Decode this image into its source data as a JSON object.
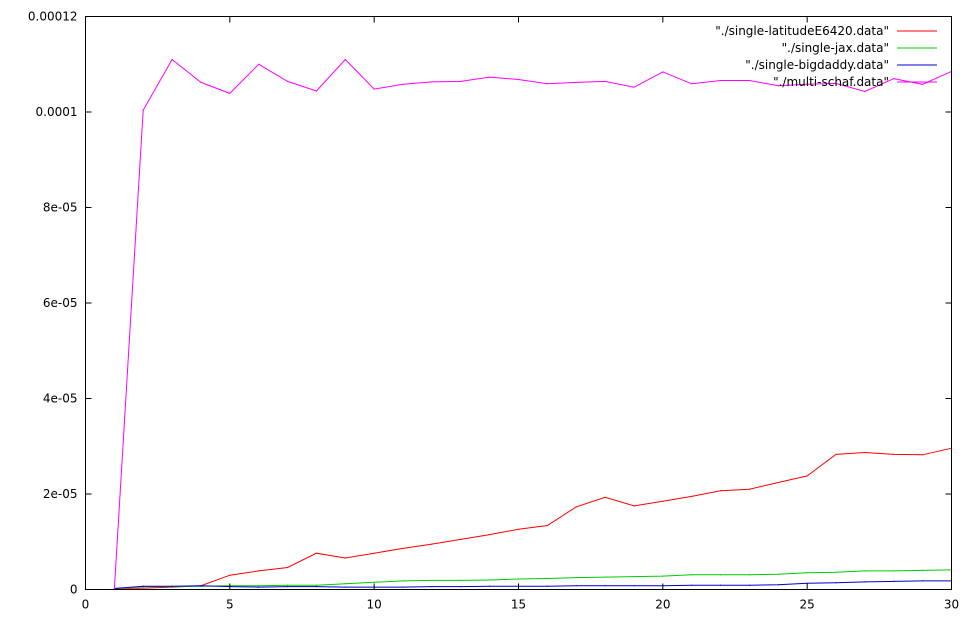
{
  "chart_data": {
    "type": "line",
    "title": "",
    "xlabel": "",
    "ylabel": "",
    "xlim": [
      0,
      30
    ],
    "ylim": [
      0,
      0.00012
    ],
    "xticks": [
      0,
      5,
      10,
      15,
      20,
      25,
      30
    ],
    "xtick_labels": [
      "0",
      "5",
      "10",
      "15",
      "20",
      "25",
      "30"
    ],
    "yticks": [
      0,
      2e-05,
      4e-05,
      6e-05,
      8e-05,
      0.0001,
      0.00012
    ],
    "ytick_labels": [
      "0",
      "2e-05",
      "4e-05",
      "6e-05",
      "8e-05",
      "0.0001",
      "0.00012"
    ],
    "grid": false,
    "legend_position": "top-right",
    "series": [
      {
        "name": "\"./single-latitudeE6420.data\"",
        "color": "#ff0000",
        "x": [
          1,
          2,
          3,
          4,
          5,
          6,
          7,
          8,
          9,
          10,
          11,
          12,
          13,
          14,
          15,
          16,
          17,
          18,
          19,
          20,
          21,
          22,
          23,
          24,
          25,
          26,
          27,
          28,
          29,
          30
        ],
        "y": [
          2e-07,
          3e-07,
          5e-07,
          8e-07,
          3e-06,
          3.9e-06,
          4.6e-06,
          7.6e-06,
          6.6e-06,
          7.6e-06,
          8.6e-06,
          9.5e-06,
          1.05e-05,
          1.15e-05,
          1.26e-05,
          1.34e-05,
          1.73e-05,
          1.93e-05,
          1.75e-05,
          1.85e-05,
          1.95e-05,
          2.07e-05,
          2.1e-05,
          2.24e-05,
          2.38e-05,
          2.83e-05,
          2.87e-05,
          2.83e-05,
          2.82e-05,
          2.96e-05
        ]
      },
      {
        "name": "\"./single-jax.data\"",
        "color": "#00cc00",
        "x": [
          1,
          2,
          3,
          4,
          5,
          6,
          7,
          8,
          9,
          10,
          11,
          12,
          13,
          14,
          15,
          16,
          17,
          18,
          19,
          20,
          21,
          22,
          23,
          24,
          25,
          26,
          27,
          28,
          29,
          30
        ],
        "y": [
          2e-07,
          6e-07,
          6e-07,
          7e-07,
          8e-07,
          8e-07,
          9e-07,
          9e-07,
          1.2e-06,
          1.5e-06,
          1.8e-06,
          1.9e-06,
          1.9e-06,
          2e-06,
          2.2e-06,
          2.3e-06,
          2.5e-06,
          2.6e-06,
          2.7e-06,
          2.8e-06,
          3.1e-06,
          3.1e-06,
          3.1e-06,
          3.2e-06,
          3.5e-06,
          3.6e-06,
          3.9e-06,
          3.9e-06,
          4e-06,
          4.1e-06
        ]
      },
      {
        "name": "\"./single-bigdaddy.data\"",
        "color": "#0000cc",
        "x": [
          1,
          2,
          3,
          4,
          5,
          6,
          7,
          8,
          9,
          10,
          11,
          12,
          13,
          14,
          15,
          16,
          17,
          18,
          19,
          20,
          21,
          22,
          23,
          24,
          25,
          26,
          27,
          28,
          29,
          30
        ],
        "y": [
          2e-07,
          7e-07,
          7e-07,
          8e-07,
          6e-07,
          5e-07,
          6e-07,
          6e-07,
          5e-07,
          5e-07,
          5e-07,
          6e-07,
          6e-07,
          7e-07,
          7e-07,
          7e-07,
          8e-07,
          8e-07,
          8e-07,
          8e-07,
          9e-07,
          9e-07,
          9e-07,
          1e-06,
          1.3e-06,
          1.4e-06,
          1.6e-06,
          1.7e-06,
          1.8e-06,
          1.8e-06
        ]
      },
      {
        "name": "\"./multi-schaf.data\"",
        "color": "#ff00ff",
        "x": [
          1,
          2,
          3,
          4,
          5,
          6,
          7,
          8,
          9,
          10,
          11,
          12,
          13,
          14,
          15,
          16,
          17,
          18,
          19,
          20,
          21,
          22,
          23,
          24,
          25,
          26,
          27,
          28,
          29,
          30
        ],
        "y": [
          2e-07,
          0.0001004,
          0.000111,
          0.0001062,
          0.0001039,
          0.00011,
          0.0001064,
          0.0001044,
          0.000111,
          0.0001048,
          0.0001058,
          0.0001063,
          0.0001064,
          0.0001073,
          0.0001068,
          0.0001059,
          0.0001062,
          0.0001064,
          0.0001052,
          0.0001084,
          0.0001059,
          0.0001066,
          0.0001066,
          0.0001055,
          0.0001058,
          0.000106,
          0.0001043,
          0.000107,
          0.0001058,
          0.0001085
        ]
      }
    ]
  }
}
